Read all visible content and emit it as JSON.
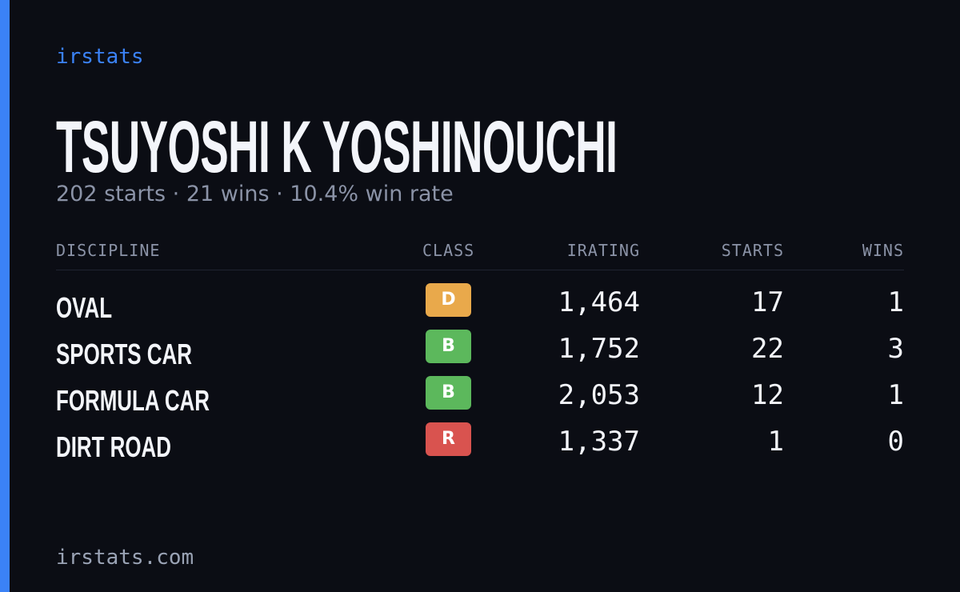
{
  "brand": "irstats",
  "driver": {
    "name": "TSUYOSHI K YOSHINOUCHI",
    "summary": "202 starts · 21 wins · 10.4% win rate"
  },
  "table": {
    "headers": [
      "DISCIPLINE",
      "CLASS",
      "IRATING",
      "STARTS",
      "WINS"
    ],
    "rows": [
      {
        "discipline": "OVAL",
        "class": "D",
        "class_color": "#e9a94b",
        "irating": "1,464",
        "starts": "17",
        "wins": "1"
      },
      {
        "discipline": "SPORTS CAR",
        "class": "B",
        "class_color": "#5cb85c",
        "irating": "1,752",
        "starts": "22",
        "wins": "3"
      },
      {
        "discipline": "FORMULA CAR",
        "class": "B",
        "class_color": "#5cb85c",
        "irating": "2,053",
        "starts": "12",
        "wins": "1"
      },
      {
        "discipline": "DIRT ROAD",
        "class": "R",
        "class_color": "#d9534f",
        "irating": "1,337",
        "starts": "1",
        "wins": "0"
      }
    ]
  },
  "footer": "irstats.com"
}
